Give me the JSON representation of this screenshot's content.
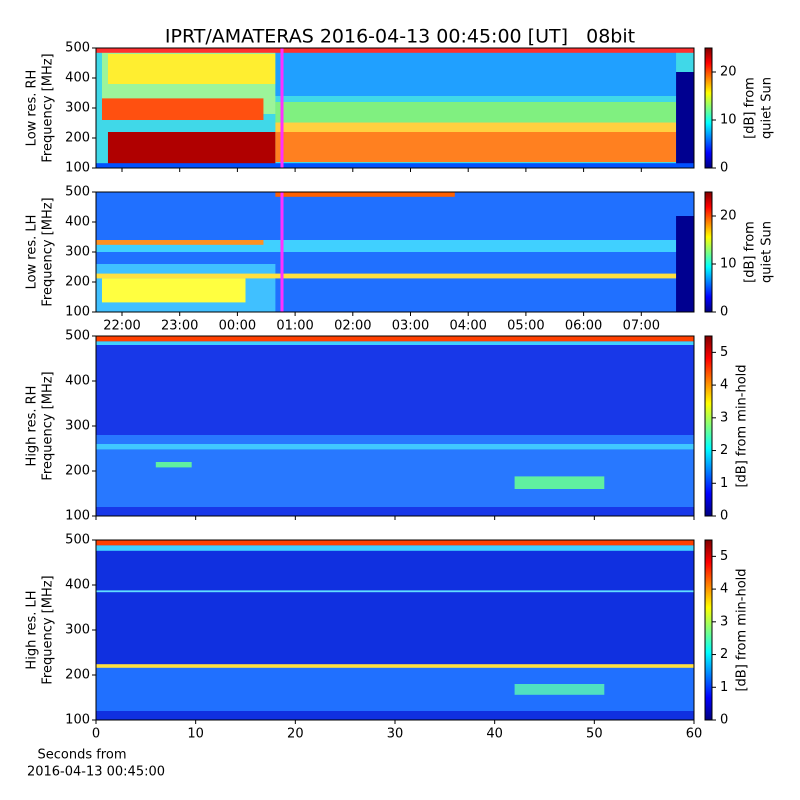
{
  "chart_data": [
    {
      "type": "spectrogram",
      "title": "IPRT/AMATERAS 2016-04-13 00:45:00 [UT]   08bit",
      "ylabel": [
        "Low res. RH",
        "Frequency [MHz]"
      ],
      "ylim": [
        100,
        500
      ],
      "yticks": [
        100,
        200,
        300,
        400,
        500
      ],
      "sharex": true,
      "colorbar_label": [
        "[dB] from",
        "quiet Sun"
      ],
      "clim": [
        0,
        25
      ],
      "cticks": [
        0,
        10,
        20
      ],
      "colormap": "jet"
    },
    {
      "type": "spectrogram",
      "ylabel": [
        "Low res. LH",
        "Frequency [MHz]"
      ],
      "ylim": [
        100,
        500
      ],
      "yticks": [
        100,
        200,
        300,
        400,
        500
      ],
      "xticks": [
        "22:00",
        "23:00",
        "00:00",
        "01:00",
        "02:00",
        "03:00",
        "04:00",
        "05:00",
        "06:00",
        "07:00"
      ],
      "colorbar_label": [
        "[dB] from",
        "quiet Sun"
      ],
      "clim": [
        0,
        25
      ],
      "cticks": [
        0,
        10,
        20
      ],
      "colormap": "jet"
    },
    {
      "type": "spectrogram",
      "ylabel": [
        "High res. RH",
        "Frequency [MHz]"
      ],
      "ylim": [
        100,
        500
      ],
      "yticks": [
        100,
        200,
        300,
        400,
        500
      ],
      "sharex": true,
      "colorbar_label": [
        "[dB] from min-hold"
      ],
      "clim": [
        0,
        5.5
      ],
      "cticks": [
        0,
        1,
        2,
        3,
        4,
        5
      ],
      "colormap": "jet"
    },
    {
      "type": "spectrogram",
      "ylabel": [
        "High res. LH",
        "Frequency [MHz]"
      ],
      "ylim": [
        100,
        500
      ],
      "yticks": [
        100,
        200,
        300,
        400,
        500
      ],
      "xlim": [
        0,
        60
      ],
      "xticks": [
        0,
        10,
        20,
        30,
        40,
        50,
        60
      ],
      "xlabel": [
        "Seconds from",
        "2016-04-13 00:45:00"
      ],
      "colorbar_label": [
        "[dB] from min-hold"
      ],
      "clim": [
        0,
        5.5
      ],
      "cticks": [
        0,
        1,
        2,
        3,
        4,
        5
      ],
      "colormap": "jet"
    }
  ]
}
